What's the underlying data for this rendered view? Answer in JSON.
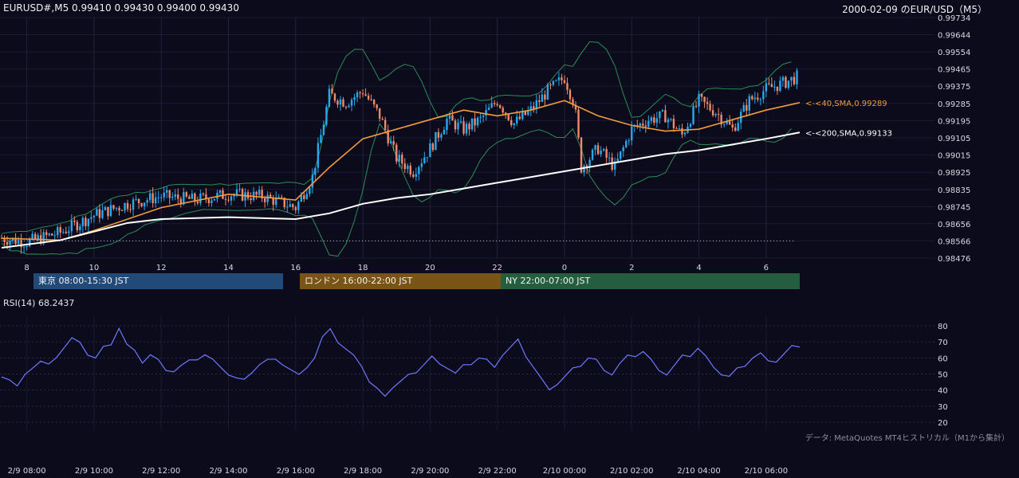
{
  "header": {
    "symbol_info": "EURUSD#,M5 0.99410 0.99430 0.99400 0.99430",
    "title_right": "2000-02-09 のEUR/USD（M5）"
  },
  "sessions": {
    "tokyo": "東京 08:00-15:30 JST",
    "london": "ロンドン 16:00-22:00 JST",
    "ny": "NY 22:00-07:00 JST"
  },
  "colors": {
    "background": "#0b0b1c",
    "candle_up": "#29a8ee",
    "candle_down": "#f08a6a",
    "sma40": "#f39c3c",
    "sma200": "#ffffff",
    "bollinger": "#2e8b57",
    "rsi": "#6f78ff",
    "tokyo": "#224a78",
    "london": "#7a5416",
    "ny": "#245e3e"
  },
  "rsi": {
    "label": "RSI(14) 68.2437",
    "ticks": [
      "80",
      "70",
      "60",
      "50",
      "40",
      "30",
      "20"
    ]
  },
  "footer": {
    "data_note": "データ: MetaQuotes MT4ヒストリカル（M1から集計）"
  },
  "chart_data": [
    {
      "type": "candlestick",
      "symbol": "EURUSD",
      "timeframe": "M5",
      "y_ticks": [
        "0.99734",
        "0.99644",
        "0.99554",
        "0.99465",
        "0.99375",
        "0.99285",
        "0.99195",
        "0.99105",
        "0.99015",
        "0.98925",
        "0.98835",
        "0.98745",
        "0.98656",
        "0.98566",
        "0.98476"
      ],
      "ylim": [
        0.98476,
        0.99734
      ],
      "x_ticks": [
        "8",
        "10",
        "12",
        "14",
        "16",
        "18",
        "20",
        "22",
        "0",
        "2",
        "4",
        "6"
      ],
      "x_tick_hours": [
        8,
        10,
        12,
        14,
        16,
        18,
        20,
        22,
        24,
        26,
        28,
        30
      ],
      "time_range_hours": [
        7.25,
        31.0
      ],
      "dotted_level": 0.98566,
      "price_path": [
        [
          7.25,
          0.9858
        ],
        [
          8.0,
          0.9856
        ],
        [
          9.0,
          0.9861
        ],
        [
          10.0,
          0.987
        ],
        [
          11.0,
          0.9876
        ],
        [
          12.0,
          0.988
        ],
        [
          13.0,
          0.9878
        ],
        [
          14.0,
          0.9881
        ],
        [
          15.0,
          0.988
        ],
        [
          16.0,
          0.9874
        ],
        [
          16.5,
          0.989
        ],
        [
          17.0,
          0.9933
        ],
        [
          17.5,
          0.9929
        ],
        [
          18.0,
          0.9935
        ],
        [
          18.5,
          0.9922
        ],
        [
          19.0,
          0.99
        ],
        [
          19.5,
          0.9893
        ],
        [
          20.0,
          0.9905
        ],
        [
          20.5,
          0.992
        ],
        [
          21.0,
          0.9915
        ],
        [
          21.5,
          0.992
        ],
        [
          22.0,
          0.993
        ],
        [
          22.5,
          0.9918
        ],
        [
          23.0,
          0.9925
        ],
        [
          23.5,
          0.9935
        ],
        [
          24.0,
          0.9942
        ],
        [
          24.3,
          0.9928
        ],
        [
          24.5,
          0.9895
        ],
        [
          25.0,
          0.9905
        ],
        [
          25.5,
          0.9895
        ],
        [
          26.0,
          0.9915
        ],
        [
          26.5,
          0.992
        ],
        [
          27.0,
          0.9922
        ],
        [
          27.5,
          0.9912
        ],
        [
          28.0,
          0.993
        ],
        [
          28.5,
          0.9924
        ],
        [
          29.0,
          0.9915
        ],
        [
          29.5,
          0.993
        ],
        [
          30.0,
          0.9936
        ],
        [
          30.5,
          0.9939
        ],
        [
          31.0,
          0.9943
        ]
      ],
      "series": [
        {
          "name": "<-<40,SMA,0.99289",
          "value_label": "<-<40,SMA,0.99289",
          "values": [
            [
              7.25,
              0.9858
            ],
            [
              9.0,
              0.9857
            ],
            [
              10.0,
              0.9862
            ],
            [
              12.0,
              0.9874
            ],
            [
              14.0,
              0.9881
            ],
            [
              16.0,
              0.9878
            ],
            [
              17.0,
              0.9895
            ],
            [
              18.0,
              0.991
            ],
            [
              19.0,
              0.9915
            ],
            [
              20.0,
              0.992
            ],
            [
              21.0,
              0.9925
            ],
            [
              22.0,
              0.9922
            ],
            [
              23.0,
              0.9925
            ],
            [
              24.0,
              0.993
            ],
            [
              25.0,
              0.9922
            ],
            [
              26.0,
              0.9917
            ],
            [
              27.0,
              0.9914
            ],
            [
              28.0,
              0.9915
            ],
            [
              29.0,
              0.992
            ],
            [
              30.0,
              0.9925
            ],
            [
              31.0,
              0.99289
            ]
          ]
        },
        {
          "name": "<-<200,SMA,0.99133",
          "value_label": "<-<200,SMA,0.99133",
          "values": [
            [
              7.25,
              0.9853
            ],
            [
              9.0,
              0.9857
            ],
            [
              11.0,
              0.9866
            ],
            [
              12.0,
              0.9868
            ],
            [
              14.0,
              0.9869
            ],
            [
              16.0,
              0.9868
            ],
            [
              17.0,
              0.9871
            ],
            [
              18.0,
              0.9876
            ],
            [
              19.0,
              0.9879
            ],
            [
              20.0,
              0.9881
            ],
            [
              21.0,
              0.9884
            ],
            [
              22.0,
              0.9887
            ],
            [
              23.0,
              0.989
            ],
            [
              24.0,
              0.9893
            ],
            [
              25.0,
              0.9896
            ],
            [
              26.0,
              0.9899
            ],
            [
              27.0,
              0.9902
            ],
            [
              28.0,
              0.9904
            ],
            [
              29.0,
              0.9907
            ],
            [
              30.0,
              0.991
            ],
            [
              31.0,
              0.99133
            ]
          ]
        }
      ]
    },
    {
      "type": "line",
      "indicator": "RSI(14)",
      "ylim": [
        20,
        80
      ],
      "x_time_hours": [
        7.25,
        31.0
      ],
      "values": [
        50,
        47,
        42,
        48,
        55,
        58,
        55,
        62,
        67,
        72,
        68,
        63,
        60,
        66,
        70,
        79,
        68,
        63,
        58,
        62,
        58,
        54,
        52,
        55,
        57,
        60,
        62,
        58,
        56,
        50,
        47,
        45,
        52,
        56,
        58,
        61,
        56,
        52,
        48,
        55,
        60,
        72,
        80,
        70,
        65,
        60,
        56,
        45,
        40,
        38,
        42,
        45,
        48,
        52,
        56,
        60,
        58,
        54,
        50,
        54,
        57,
        60,
        58,
        56,
        62,
        66,
        70,
        62,
        54,
        46,
        42,
        44,
        48,
        52,
        56,
        60,
        58,
        54,
        50,
        56,
        60,
        62,
        64,
        58,
        54,
        50,
        55,
        60,
        62,
        66,
        60,
        56,
        50,
        48,
        52,
        56,
        60,
        62,
        60,
        58,
        62,
        66,
        68
      ]
    }
  ],
  "x_axis_bottom": [
    "2/9 08:00",
    "2/9 10:00",
    "2/9 12:00",
    "2/9 14:00",
    "2/9 16:00",
    "2/9 18:00",
    "2/9 20:00",
    "2/9 22:00",
    "2/10 00:00",
    "2/10 02:00",
    "2/10 04:00",
    "2/10 06:00"
  ]
}
